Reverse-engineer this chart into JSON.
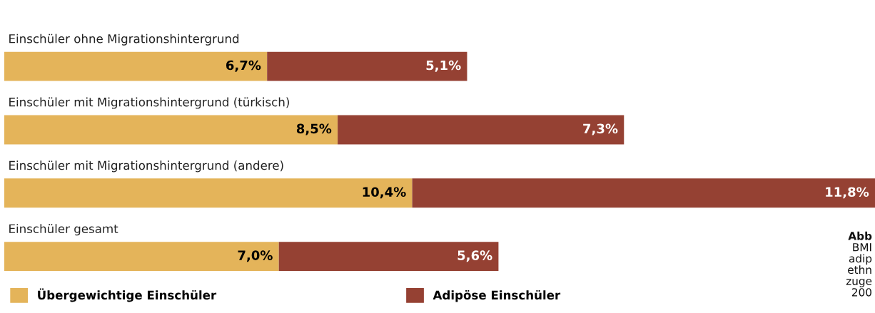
{
  "chart_data": {
    "type": "bar",
    "orientation": "horizontal",
    "stacked": true,
    "categories": [
      "Einschüler ohne Migrationshintergrund",
      "Einschüler mit Migrationshintergrund (türkisch)",
      "Einschüler mit Migrationshintergrund (andere)",
      "Einschüler gesamt"
    ],
    "series": [
      {
        "name": "Übergewichtige Einschüler",
        "color": "#e4b45a",
        "values": [
          6.7,
          8.5,
          10.4,
          7.0
        ],
        "value_labels": [
          "6,7%",
          "8,5%",
          "10,4%",
          "7,0%"
        ]
      },
      {
        "name": "Adipöse Einschüler",
        "color": "#954133",
        "values": [
          5.1,
          7.3,
          11.8,
          5.6
        ],
        "value_labels": [
          "5,1%",
          "7,3%",
          "11,8%",
          "5,6%"
        ]
      }
    ],
    "legend": "bottom left",
    "annotations": [
      "Abb",
      "BMI",
      "adip",
      "ethn",
      "zuge",
      "200"
    ]
  }
}
